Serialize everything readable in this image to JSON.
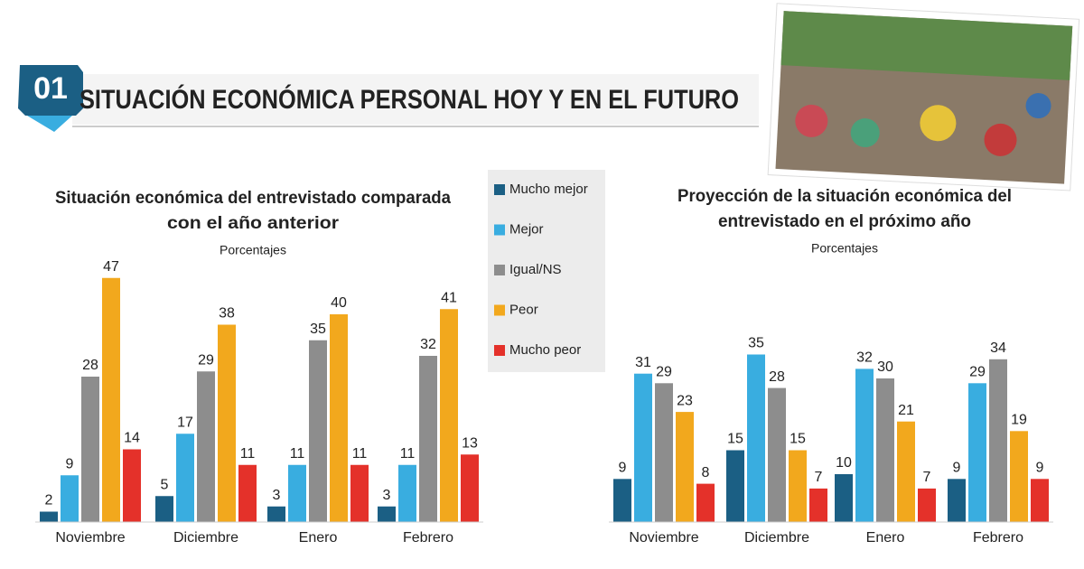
{
  "header": {
    "number": "01",
    "title": "SITUACIÓN ECONÓMICA PERSONAL HOY Y EN EL FUTURO"
  },
  "chart_data": [
    {
      "type": "bar",
      "title": [
        "Situación económica del entrevistado comparada",
        "con el año anterior"
      ],
      "subtitle": "Porcentajes",
      "categories": [
        "Noviembre",
        "Diciembre",
        "Enero",
        "Febrero"
      ],
      "series": [
        {
          "name": "Mucho mejor",
          "color": "#1b5f84",
          "values": [
            2,
            5,
            3,
            3
          ]
        },
        {
          "name": "Mejor",
          "color": "#39ade0",
          "values": [
            9,
            17,
            11,
            11
          ]
        },
        {
          "name": "Igual/NS",
          "color": "#8d8d8d",
          "values": [
            28,
            29,
            35,
            32
          ]
        },
        {
          "name": "Peor",
          "color": "#f2a81d",
          "values": [
            47,
            38,
            40,
            41
          ]
        },
        {
          "name": "Mucho peor",
          "color": "#e4312a",
          "values": [
            14,
            11,
            11,
            13
          ]
        }
      ]
    },
    {
      "type": "bar",
      "title": [
        "Proyección de la situación económica del",
        "entrevistado en el próximo año"
      ],
      "subtitle": "Porcentajes",
      "categories": [
        "Noviembre",
        "Diciembre",
        "Enero",
        "Febrero"
      ],
      "series": [
        {
          "color": "#1b5f84",
          "values": [
            9,
            15,
            10,
            9
          ]
        },
        {
          "color": "#39ade0",
          "values": [
            31,
            35,
            32,
            29
          ]
        },
        {
          "color": "#8d8d8d",
          "values": [
            29,
            28,
            30,
            34
          ]
        },
        {
          "color": "#f2a81d",
          "values": [
            23,
            15,
            21,
            19
          ]
        },
        {
          "color": "#e4312a",
          "values": [
            8,
            7,
            7,
            9
          ]
        }
      ]
    }
  ]
}
